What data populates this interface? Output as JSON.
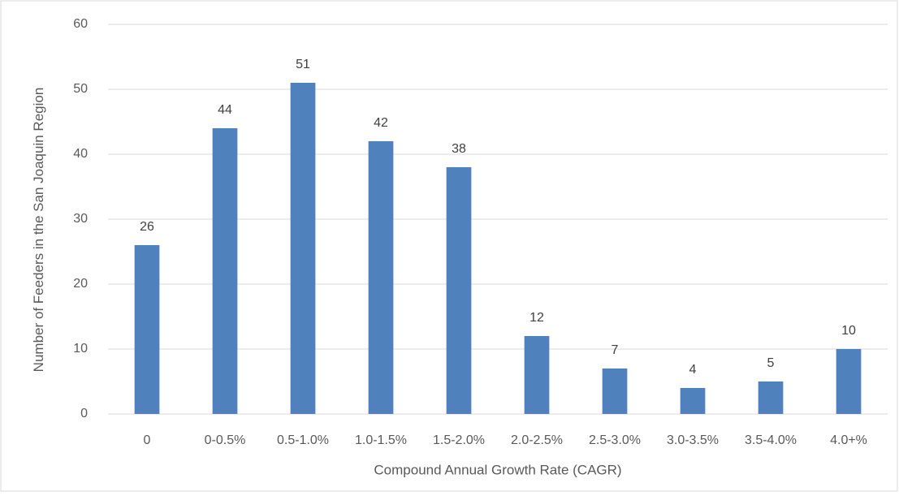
{
  "chart_data": {
    "type": "bar",
    "x_label": "Compound Annual Growth Rate (CAGR)",
    "y_label": "Number of Feeders in the San Joaquin Region",
    "categories": [
      "0",
      "0-0.5%",
      "0.5-1.0%",
      "1.0-1.5%",
      "1.5-2.0%",
      "2.0-2.5%",
      "2.5-3.0%",
      "3.0-3.5%",
      "3.5-4.0%",
      "4.0+%"
    ],
    "values": [
      26,
      44,
      51,
      42,
      38,
      12,
      7,
      4,
      5,
      10
    ],
    "color": "#4f81bd",
    "ylim": [
      0,
      60
    ],
    "yticks": [
      0,
      10,
      20,
      30,
      40,
      50,
      60
    ],
    "grid": true
  }
}
